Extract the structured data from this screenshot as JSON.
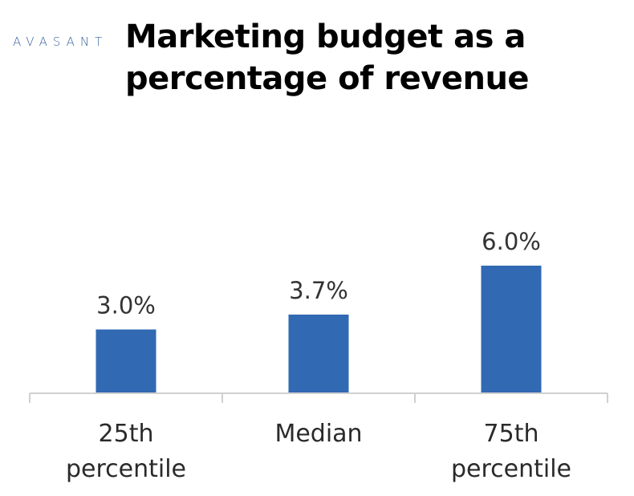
{
  "logo": {
    "text": "AVASANT"
  },
  "title": {
    "line1": "Marketing budget as a",
    "line2": "percentage of revenue"
  },
  "chart_data": {
    "type": "bar",
    "title": "Marketing budget as a percentage of revenue",
    "categories": [
      [
        "25th",
        "percentile"
      ],
      [
        "Median"
      ],
      [
        "75th",
        "percentile"
      ]
    ],
    "values": [
      3.0,
      3.7,
      6.0
    ],
    "value_labels": [
      "3.0%",
      "3.7%",
      "6.0%"
    ],
    "unit": "%",
    "xlabel": "",
    "ylabel": "",
    "ylim": [
      0,
      6.0
    ],
    "grid": false,
    "legend": "none",
    "bar_color": "#3169b3",
    "axis_color": "#d0d0d0"
  }
}
